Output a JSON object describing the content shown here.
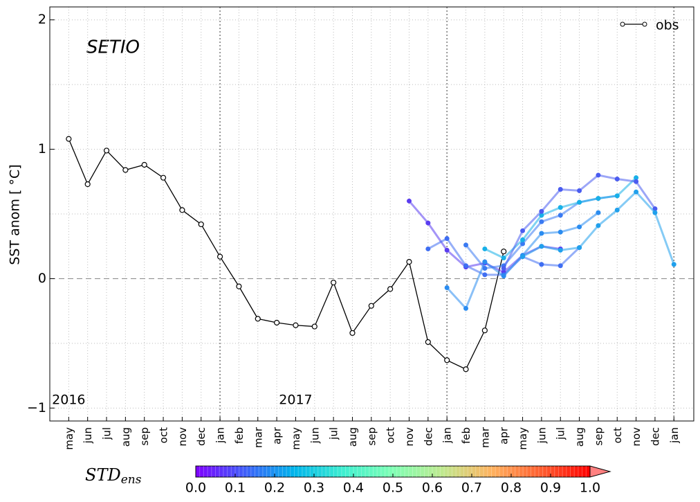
{
  "chart_data": {
    "type": "line",
    "title": "SETIO",
    "y_label": "SST anom [ °C]",
    "annotations": [
      "2016",
      "2017"
    ],
    "categories": [
      "may",
      "jun",
      "jul",
      "aug",
      "sep",
      "oct",
      "nov",
      "dec",
      "jan",
      "feb",
      "mar",
      "apr",
      "may",
      "jun",
      "jul",
      "aug",
      "sep",
      "oct",
      "nov",
      "dec",
      "jan",
      "feb",
      "mar",
      "apr",
      "may",
      "jun",
      "jul",
      "aug",
      "sep",
      "oct",
      "nov",
      "dec",
      "jan"
    ],
    "ylim": [
      -1.1,
      2.1
    ],
    "yticks": [
      {
        "value": -1,
        "label": "−1"
      },
      0,
      1,
      2
    ],
    "grid": true,
    "legend": "upper right",
    "series": [
      {
        "name": "obs",
        "color": "#000000",
        "values": [
          1.08,
          0.73,
          0.99,
          0.84,
          0.88,
          0.78,
          0.53,
          0.42,
          0.17,
          -0.06,
          -0.31,
          -0.34,
          -0.36,
          -0.37,
          -0.03,
          -0.42,
          -0.21,
          -0.08,
          0.13,
          -0.49,
          -0.63,
          -0.7,
          -0.4,
          0.21,
          null,
          null,
          null,
          null,
          null,
          null,
          null,
          null,
          null
        ]
      },
      {
        "color": "#5a3cf0",
        "values": [
          null,
          null,
          null,
          null,
          null,
          null,
          null,
          null,
          null,
          null,
          null,
          null,
          null,
          null,
          null,
          null,
          null,
          null,
          0.6,
          0.43,
          0.22,
          0.09,
          0.12,
          0.05,
          0.18,
          0.25,
          0.23,
          null,
          null,
          null,
          null,
          null,
          null
        ]
      },
      {
        "color": "#3f6ef2",
        "values": [
          null,
          null,
          null,
          null,
          null,
          null,
          null,
          null,
          null,
          null,
          null,
          null,
          null,
          null,
          null,
          null,
          null,
          null,
          null,
          0.23,
          0.31,
          0.1,
          0.03,
          0.03,
          0.17,
          0.11,
          0.1,
          0.24,
          null,
          null,
          null,
          null,
          null
        ]
      },
      {
        "color": "#2a8cf0",
        "values": [
          null,
          null,
          null,
          null,
          null,
          null,
          null,
          null,
          null,
          null,
          null,
          null,
          null,
          null,
          null,
          null,
          null,
          null,
          null,
          null,
          -0.07,
          -0.23,
          0.13,
          0.02,
          0.18,
          0.35,
          0.36,
          0.4,
          0.51,
          null,
          null,
          null,
          null
        ]
      },
      {
        "color": "#3a7af2",
        "values": [
          null,
          null,
          null,
          null,
          null,
          null,
          null,
          null,
          null,
          null,
          null,
          null,
          null,
          null,
          null,
          null,
          null,
          null,
          null,
          null,
          null,
          0.26,
          0.08,
          0.1,
          0.27,
          0.44,
          0.49,
          0.59,
          0.62,
          0.64,
          null,
          null,
          null
        ]
      },
      {
        "color": "#18b0e8",
        "values": [
          null,
          null,
          null,
          null,
          null,
          null,
          null,
          null,
          null,
          null,
          null,
          null,
          null,
          null,
          null,
          null,
          null,
          null,
          null,
          null,
          null,
          null,
          0.23,
          0.16,
          0.3,
          0.49,
          0.55,
          0.59,
          0.62,
          0.64,
          0.78,
          null,
          null
        ]
      },
      {
        "color": "#4a5cf0",
        "values": [
          null,
          null,
          null,
          null,
          null,
          null,
          null,
          null,
          null,
          null,
          null,
          null,
          null,
          null,
          null,
          null,
          null,
          null,
          null,
          null,
          null,
          null,
          null,
          0.08,
          0.37,
          0.52,
          0.69,
          0.68,
          0.8,
          0.77,
          0.75,
          0.54,
          null
        ]
      },
      {
        "color": "#20a0ec",
        "values": [
          null,
          null,
          null,
          null,
          null,
          null,
          null,
          null,
          null,
          null,
          null,
          null,
          null,
          null,
          null,
          null,
          null,
          null,
          null,
          null,
          null,
          null,
          null,
          null,
          0.17,
          0.25,
          0.22,
          0.24,
          0.41,
          0.53,
          0.67,
          0.51,
          0.11
        ]
      }
    ],
    "colorbar": {
      "label": "STD",
      "label_sub": "ens",
      "lim": [
        0,
        1
      ],
      "ticks": [
        {
          "value": 0,
          "label": "0.0"
        },
        0.1,
        0.2,
        0.3,
        0.4,
        0.5,
        0.6,
        0.7,
        0.8,
        0.9,
        {
          "value": 1,
          "label": "1.0"
        }
      ],
      "colors": [
        "#7f00ff",
        "#3f5ff9",
        "#00b5eb",
        "#3fefd0",
        "#7fffb4",
        "#bfe98f",
        "#ffb360",
        "#ff5f30",
        "#ff0000"
      ],
      "extend_color": "#ff8080"
    }
  }
}
